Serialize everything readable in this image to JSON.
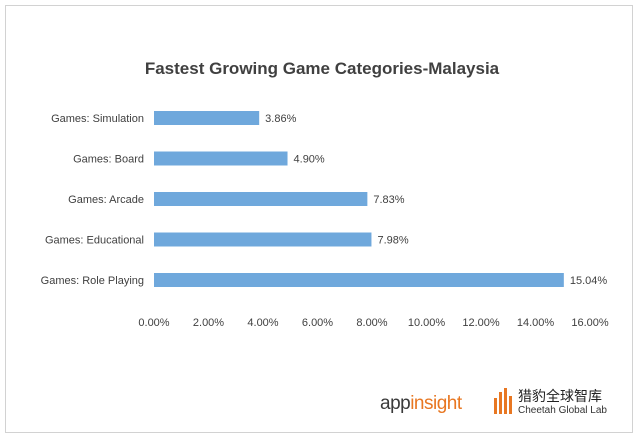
{
  "chart_data": {
    "type": "bar",
    "orientation": "horizontal",
    "title": "Fastest Growing Game Categories-Malaysia",
    "categories": [
      "Games: Simulation",
      "Games: Board",
      "Games: Arcade",
      "Games: Educational",
      "Games: Role Playing"
    ],
    "values": [
      3.86,
      4.9,
      7.83,
      7.98,
      15.04
    ],
    "data_labels": [
      "3.86%",
      "4.90%",
      "7.83%",
      "7.98%",
      "15.04%"
    ],
    "xlim": [
      0,
      16
    ],
    "x_ticks": [
      "0.00%",
      "2.00%",
      "4.00%",
      "6.00%",
      "8.00%",
      "10.00%",
      "12.00%",
      "14.00%",
      "16.00%"
    ],
    "grid": false,
    "legend": "none",
    "bar_color": "#6fa8dc"
  },
  "logos": {
    "appinsight_prefix": "app",
    "appinsight_suffix": "insight",
    "cheetah_cn": "猎豹全球智库",
    "cheetah_en": "Cheetah Global Lab"
  },
  "colors": {
    "accent": "#e87722",
    "bar": "#6fa8dc"
  }
}
